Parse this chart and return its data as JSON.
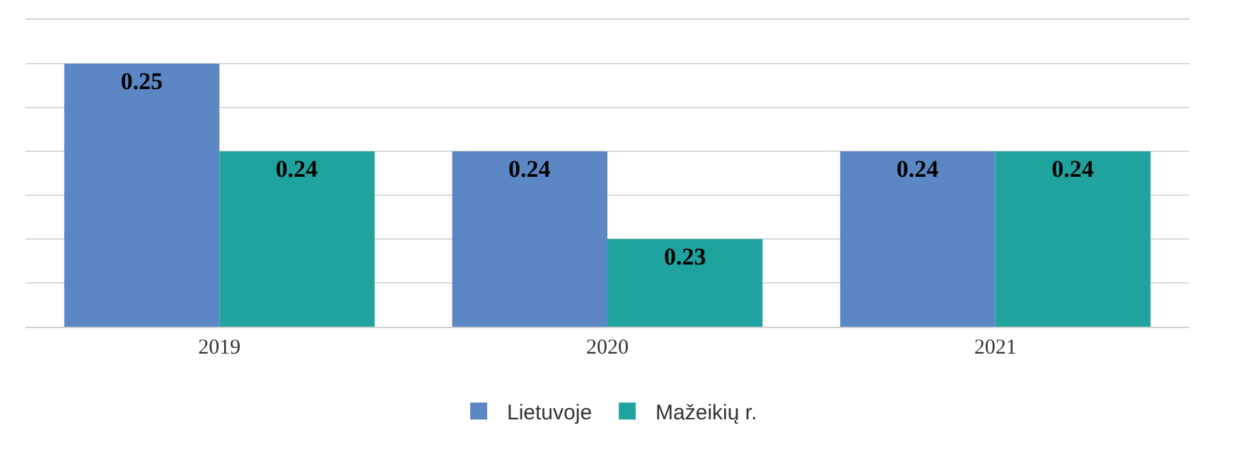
{
  "chart_data": {
    "type": "bar",
    "categories": [
      "2019",
      "2020",
      "2021"
    ],
    "series": [
      {
        "name": "Lietuvoje",
        "color": "#5b87c5",
        "values": [
          0.25,
          0.24,
          0.24
        ]
      },
      {
        "name": "Mažeikių r.",
        "color": "#1fa39e",
        "values": [
          0.24,
          0.23,
          0.24
        ]
      }
    ],
    "ylim": [
      0.22,
      0.255
    ],
    "yticks": [
      {
        "value": 0.22,
        "label": null
      },
      {
        "value": 0.225,
        "label": null
      },
      {
        "value": 0.23,
        "label": null
      },
      {
        "value": 0.235,
        "label": null
      },
      {
        "value": 0.24,
        "label": null
      },
      {
        "value": 0.245,
        "label": null
      },
      {
        "value": 0.25,
        "label": null
      },
      {
        "value": 0.255,
        "label": null
      }
    ],
    "tick_labels": "x",
    "grid": "y",
    "data_labels": true,
    "legend": "bottom"
  }
}
